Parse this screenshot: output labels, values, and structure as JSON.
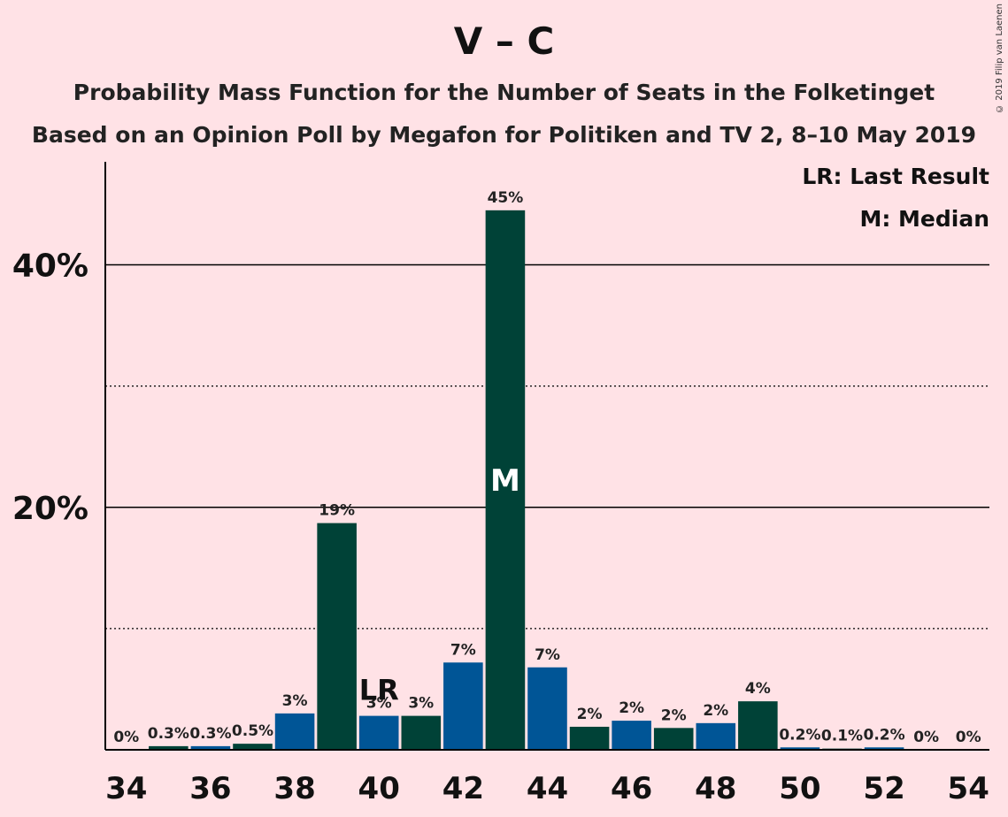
{
  "header": {
    "title": "V – C",
    "subtitle1": "Probability Mass Function for the Number of Seats in the Folketinget",
    "subtitle2": "Based on an Opinion Poll by Megafon for Politiken and TV 2, 8–10 May 2019",
    "copyright": "© 2019 Filip van Laenen"
  },
  "legend": {
    "last_result": "LR: Last Result",
    "median": "M: Median"
  },
  "chart_data": {
    "type": "bar",
    "title": "V – C",
    "x": [
      34,
      35,
      36,
      37,
      38,
      39,
      40,
      41,
      42,
      43,
      44,
      45,
      46,
      47,
      48,
      49,
      50,
      51,
      52,
      53,
      54
    ],
    "values": [
      0,
      0.3,
      0.3,
      0.5,
      3,
      18.7,
      2.8,
      2.8,
      7.2,
      44.5,
      6.8,
      1.9,
      2.4,
      1.8,
      2.2,
      4.0,
      0.2,
      0.1,
      0.2,
      0,
      0
    ],
    "labels": [
      "0%",
      "0.3%",
      "0.3%",
      "0.5%",
      "3%",
      "19%",
      "3%",
      "3%",
      "7%",
      "45%",
      "7%",
      "2%",
      "2%",
      "2%",
      "2%",
      "4%",
      "0.2%",
      "0.1%",
      "0.2%",
      "0%",
      "0%"
    ],
    "x_tick_labels": [
      "34",
      "36",
      "38",
      "40",
      "42",
      "44",
      "46",
      "48",
      "50",
      "52",
      "54"
    ],
    "y_tick_labels": [
      "20%",
      "40%"
    ],
    "ylim": [
      0,
      48.5
    ],
    "major_gridlines": [
      20,
      40
    ],
    "minor_gridlines": [
      10,
      30
    ],
    "last_result": 40,
    "last_result_label": "LR",
    "median": 43,
    "median_label": "M",
    "colors": {
      "even": "#005596",
      "odd": "#004237",
      "background": "#ffe2e6"
    }
  }
}
